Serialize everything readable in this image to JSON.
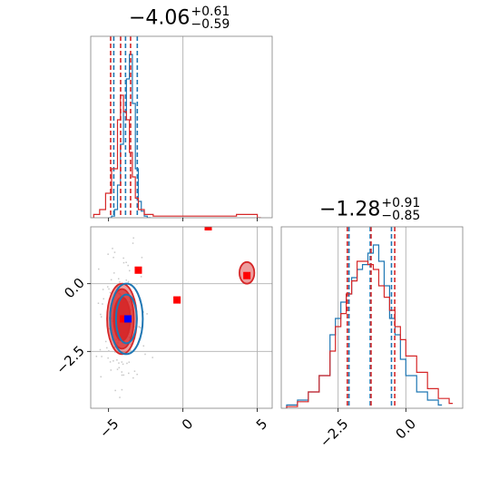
{
  "chart_data": [
    {
      "panel": "marginal-param-1",
      "type": "histogram",
      "title": {
        "value": "−4.06",
        "upper": "+0.61",
        "lower": "−0.59"
      },
      "xlim": [
        -6.2,
        6.0
      ],
      "truths": [
        0
      ],
      "series": [
        {
          "color": "#1f77b4",
          "bins": [
            [
              -5.0,
              0.0
            ],
            [
              -4.8,
              0.01
            ],
            [
              -4.6,
              0.05
            ],
            [
              -4.4,
              0.2
            ],
            [
              -4.2,
              0.45
            ],
            [
              -4.0,
              0.65
            ],
            [
              -3.8,
              0.85
            ],
            [
              -3.6,
              1.0
            ],
            [
              -3.4,
              0.7
            ],
            [
              -3.2,
              0.3
            ],
            [
              -3.0,
              0.1
            ],
            [
              -2.8,
              0.04
            ],
            [
              -2.6,
              0.01
            ],
            [
              -2.4,
              0.0
            ]
          ],
          "quantiles": [
            -4.65,
            -3.07
          ]
        },
        {
          "color": "#d62728",
          "bins": [
            [
              -6.0,
              0.02
            ],
            [
              -5.6,
              0.05
            ],
            [
              -5.2,
              0.15
            ],
            [
              -4.8,
              0.3
            ],
            [
              -4.4,
              0.6
            ],
            [
              -4.2,
              0.75
            ],
            [
              -4.0,
              0.65
            ],
            [
              -3.8,
              0.6
            ],
            [
              -3.6,
              0.4
            ],
            [
              -3.4,
              0.25
            ],
            [
              -3.2,
              0.12
            ],
            [
              -3.0,
              0.05
            ],
            [
              -2.6,
              0.02
            ],
            [
              -2.0,
              0.01
            ],
            [
              2.8,
              0.01
            ],
            [
              3.6,
              0.02
            ],
            [
              4.4,
              0.02
            ],
            [
              5.0,
              0.0
            ]
          ],
          "quantiles": [
            -4.86,
            -3.52
          ]
        }
      ]
    },
    {
      "panel": "joint-2d",
      "type": "contour",
      "xlim": [
        -6.2,
        6.0
      ],
      "ylim": [
        -4.6,
        2.1
      ],
      "xticks": [
        "−5",
        "0",
        "5"
      ],
      "xtick_values": [
        -5,
        0,
        5
      ],
      "yticks": [
        "0.0",
        "−2.5"
      ],
      "ytick_values": [
        0.0,
        -2.5
      ],
      "truth_lines": {
        "x": [
          0,
          5
        ],
        "y": [
          0.0,
          -2.5
        ]
      },
      "series": [
        {
          "color": "#d62728",
          "center": [
            -4.1,
            -1.3
          ],
          "contours": [
            [
              1.0,
              1.3
            ],
            [
              0.8,
              1.1
            ],
            [
              0.55,
              0.8
            ]
          ]
        },
        {
          "color": "#1f77b4",
          "center": [
            -3.8,
            -1.3
          ],
          "contours": [
            [
              1.1,
              1.3
            ],
            [
              0.7,
              0.9
            ]
          ]
        },
        {
          "color": "#d62728",
          "center": [
            4.3,
            0.4
          ],
          "contours": [
            [
              0.5,
              0.4
            ]
          ]
        }
      ],
      "markers": [
        {
          "color": "#ff0000",
          "x": 1.7,
          "y": 2.1
        },
        {
          "color": "#ff0000",
          "x": -3.0,
          "y": 0.5
        },
        {
          "color": "#ff0000",
          "x": -0.4,
          "y": -0.6
        },
        {
          "color": "#ff0000",
          "x": 4.3,
          "y": 0.3
        },
        {
          "color": "#ff0000",
          "x": -4.0,
          "y": -1.3
        },
        {
          "color": "#0000ff",
          "x": -3.7,
          "y": -1.3
        }
      ]
    },
    {
      "panel": "marginal-param-2",
      "type": "histogram",
      "title": {
        "value": "−1.28",
        "upper": "+0.91",
        "lower": "−0.85"
      },
      "xlim": [
        -4.6,
        2.1
      ],
      "xticks": [
        "−2.5",
        "0.0"
      ],
      "xtick_values": [
        -2.5,
        0.0
      ],
      "truths": [
        -2.5,
        0.0
      ],
      "series": [
        {
          "color": "#1f77b4",
          "bins": [
            [
              -4.4,
              0.02
            ],
            [
              -4.0,
              0.05
            ],
            [
              -3.6,
              0.1
            ],
            [
              -3.2,
              0.2
            ],
            [
              -2.8,
              0.45
            ],
            [
              -2.6,
              0.55
            ],
            [
              -2.4,
              0.65
            ],
            [
              -2.2,
              0.7
            ],
            [
              -2.0,
              0.8
            ],
            [
              -1.8,
              0.85
            ],
            [
              -1.6,
              0.88
            ],
            [
              -1.4,
              0.95
            ],
            [
              -1.2,
              1.0
            ],
            [
              -1.0,
              0.9
            ],
            [
              -0.8,
              0.75
            ],
            [
              -0.6,
              0.55
            ],
            [
              -0.4,
              0.45
            ],
            [
              -0.2,
              0.3
            ],
            [
              0.0,
              0.2
            ],
            [
              0.4,
              0.1
            ],
            [
              0.8,
              0.05
            ],
            [
              1.2,
              0.02
            ]
          ],
          "quantiles": [
            -2.1,
            -0.53
          ]
        },
        {
          "color": "#d62728",
          "bins": [
            [
              -4.4,
              0.01
            ],
            [
              -4.0,
              0.04
            ],
            [
              -3.6,
              0.1
            ],
            [
              -3.2,
              0.2
            ],
            [
              -2.8,
              0.35
            ],
            [
              -2.6,
              0.5
            ],
            [
              -2.4,
              0.58
            ],
            [
              -2.2,
              0.7
            ],
            [
              -2.0,
              0.78
            ],
            [
              -1.8,
              0.9
            ],
            [
              -1.6,
              0.9
            ],
            [
              -1.4,
              0.88
            ],
            [
              -1.2,
              0.85
            ],
            [
              -1.0,
              0.75
            ],
            [
              -0.8,
              0.68
            ],
            [
              -0.6,
              0.6
            ],
            [
              -0.4,
              0.5
            ],
            [
              -0.2,
              0.42
            ],
            [
              0.0,
              0.32
            ],
            [
              0.4,
              0.22
            ],
            [
              0.8,
              0.12
            ],
            [
              1.2,
              0.06
            ],
            [
              1.6,
              0.03
            ]
          ],
          "quantiles": [
            -2.16,
            -0.41
          ]
        }
      ]
    }
  ]
}
